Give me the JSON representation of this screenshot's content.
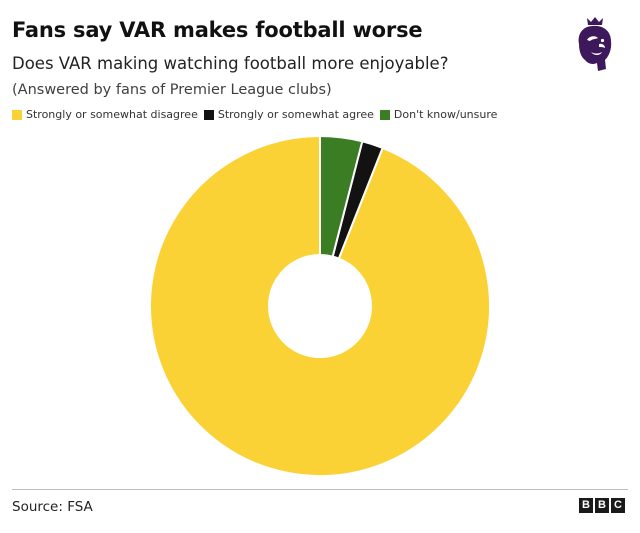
{
  "header": {
    "title": "Fans say VAR makes football worse",
    "subtitle": "Does VAR making watching football more enjoyable?",
    "note": "(Answered by fans of Premier League clubs)"
  },
  "legend": [
    {
      "label": "Strongly or somewhat disagree",
      "color": "#FBD235"
    },
    {
      "label": "Strongly or somewhat agree",
      "color": "#121212"
    },
    {
      "label": "Don't know/unsure",
      "color": "#3A7D22"
    }
  ],
  "chart_data": {
    "type": "pie",
    "variant": "donut",
    "title": "Fans say VAR makes football worse",
    "subtitle": "Does VAR making watching football more enjoyable?",
    "categories": [
      "Strongly or somewhat disagree",
      "Strongly or somewhat agree",
      "Don't know/unsure"
    ],
    "values": [
      94,
      2,
      4
    ],
    "colors": [
      "#FBD235",
      "#121212",
      "#3A7D22"
    ],
    "legend_position": "top-left"
  },
  "footer": {
    "source": "Source: FSA",
    "brand_letters": [
      "B",
      "B",
      "C"
    ]
  },
  "logo": {
    "icon": "premier-league-lion-icon",
    "color": "#3D195B"
  }
}
